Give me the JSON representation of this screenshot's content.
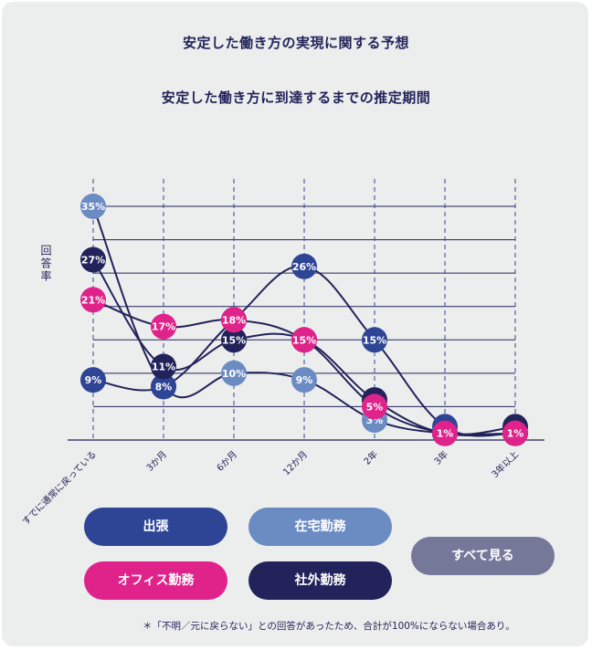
{
  "main_title": "安定した働き方の実現に関する予想",
  "chart_title": "安定した働き方に到達するまでの推定期間",
  "footnote": "＊「不明／元に戻らない」との回答があったため、合計が100%にならない場合あり。",
  "buttons": {
    "business_trip": "出張",
    "remote_work": "在宅勤務",
    "show_all": "すべて見る",
    "office_work": "オフィス勤務",
    "external_work": "社外勤務"
  },
  "colors": {
    "business_trip": "#2e4595",
    "remote_work": "#6b8bc3",
    "office_work": "#e0238a",
    "external_work": "#22235a",
    "show_all": "#76789a"
  },
  "chart_data": {
    "type": "line",
    "ylabel": "回答率",
    "xlabel": "",
    "categories": [
      "すでに通常に戻っている",
      "3か月",
      "6か月",
      "12か月",
      "2年",
      "3年",
      "3年以上"
    ],
    "ylim": [
      0,
      35
    ],
    "series": [
      {
        "name": "在宅勤務",
        "color_key": "remote_work",
        "values": [
          35,
          8,
          10,
          9,
          3,
          1,
          1
        ],
        "labels": [
          "35%",
          "",
          "10%",
          "9%",
          "3%",
          "",
          ""
        ]
      },
      {
        "name": "出張",
        "color_key": "business_trip",
        "values": [
          9,
          8,
          18,
          26,
          15,
          2,
          1
        ],
        "labels": [
          "9%",
          "8%",
          "",
          "26%",
          "15%",
          "",
          ""
        ]
      },
      {
        "name": "社外勤務",
        "color_key": "external_work",
        "values": [
          27,
          11,
          15,
          15,
          6,
          1,
          2
        ],
        "labels": [
          "27%",
          "11%",
          "15%",
          "",
          "",
          "",
          ""
        ]
      },
      {
        "name": "オフィス勤務",
        "color_key": "office_work",
        "values": [
          21,
          17,
          18,
          15,
          5,
          1,
          1
        ],
        "labels": [
          "21%",
          "17%",
          "18%",
          "15%",
          "5%",
          "1%",
          "1%"
        ]
      }
    ]
  }
}
